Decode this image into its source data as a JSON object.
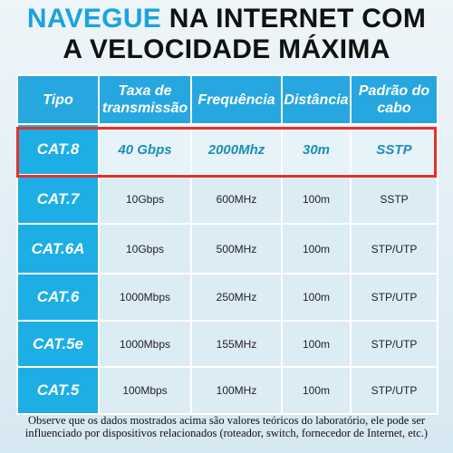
{
  "header": {
    "title_highlight": "NAVEGUE",
    "title_rest": "NA INTERNET COM",
    "title_line2": "A VELOCIDADE MÁXIMA"
  },
  "table": {
    "columns": [
      "Tipo",
      "Taxa de transmissão",
      "Frequência",
      "Distância",
      "Padrão do cabo"
    ],
    "rows": [
      [
        "CAT.8",
        "40 Gbps",
        "2000Mhz",
        "30m",
        "SSTP"
      ],
      [
        "CAT.7",
        "10Gbps",
        "600MHz",
        "100m",
        "SSTP"
      ],
      [
        "CAT.6A",
        "10Gbps",
        "500MHz",
        "100m",
        "STP/UTP"
      ],
      [
        "CAT.6",
        "1000Mbps",
        "250MHz",
        "100m",
        "STP/UTP"
      ],
      [
        "CAT.5e",
        "1000Mbps",
        "155MHz",
        "100m",
        "STP/UTP"
      ],
      [
        "CAT.5",
        "100Mbps",
        "100MHz",
        "100m",
        "STP/UTP"
      ]
    ]
  },
  "footer": {
    "note": "Observe que os dados mostrados acima são valores teóricos do laboratório, ele pode ser influenciado por dispositivos relacionados (roteador, switch, fornecedor de Internet, etc.)"
  }
}
